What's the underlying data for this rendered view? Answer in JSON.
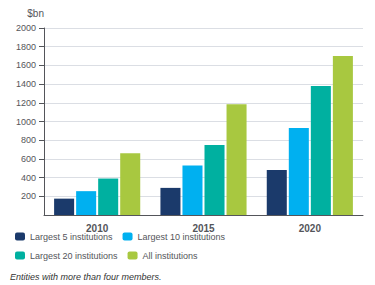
{
  "chart_data": {
    "type": "bar",
    "categories": [
      "2010",
      "2015",
      "2020"
    ],
    "series": [
      {
        "name": "Largest 5 institutions",
        "color": "#1b3a6b",
        "values": [
          175,
          290,
          480
        ]
      },
      {
        "name": "Largest 10 institutions",
        "color": "#00b0f0",
        "values": [
          255,
          530,
          930
        ]
      },
      {
        "name": "Largest 20 institutions",
        "color": "#00b0a0",
        "values": [
          390,
          750,
          1380
        ]
      },
      {
        "name": "All institutions",
        "color": "#a8c840",
        "values": [
          660,
          1185,
          1700
        ]
      }
    ],
    "ylabel": "$bn",
    "ylim": [
      0,
      2000
    ],
    "yticks": [
      200,
      400,
      600,
      800,
      1000,
      1200,
      1400,
      1600,
      1800,
      2000
    ],
    "grid": true,
    "legend": "bottom",
    "annotations": [
      "Entities with more than four members."
    ]
  }
}
